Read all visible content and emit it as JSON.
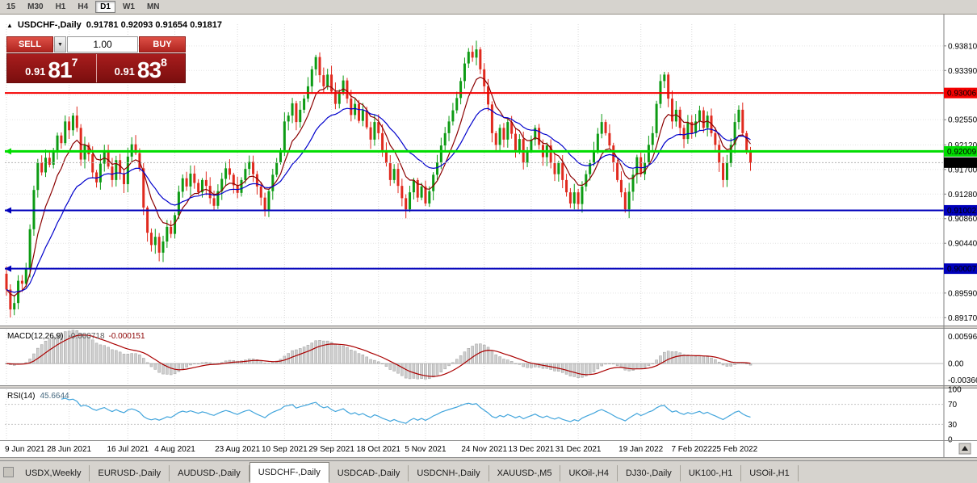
{
  "toolbar": {
    "timeframes": [
      {
        "label": "15",
        "active": false
      },
      {
        "label": "M30",
        "active": false
      },
      {
        "label": "H1",
        "active": false
      },
      {
        "label": "H4",
        "active": false
      },
      {
        "label": "D1",
        "active": true
      },
      {
        "label": "W1",
        "active": false
      },
      {
        "label": "MN",
        "active": false
      }
    ]
  },
  "chart_header": {
    "symbol": "USDCHF-,Daily",
    "ohlc": "0.91781 0.92093 0.91654 0.91817"
  },
  "trade_panel": {
    "sell_label": "SELL",
    "buy_label": "BUY",
    "volume": "1.00",
    "sell_price_prefix": "0.91",
    "sell_price_big": "81",
    "sell_price_sup": "7",
    "buy_price_prefix": "0.91",
    "buy_price_big": "83",
    "buy_price_sup": "8"
  },
  "chart_data": {
    "type": "candlestick",
    "symbol": "USDCHF",
    "timeframe": "Daily",
    "first_open": 0.8992,
    "closes": [
      0.8965,
      0.8931,
      0.8942,
      0.898,
      0.8975,
      0.9,
      0.9068,
      0.9135,
      0.9182,
      0.9165,
      0.919,
      0.9178,
      0.9201,
      0.9228,
      0.9215,
      0.9252,
      0.9237,
      0.9262,
      0.9241,
      0.9187,
      0.9212,
      0.9196,
      0.9165,
      0.9148,
      0.918,
      0.9203,
      0.9175,
      0.9152,
      0.9186,
      0.9163,
      0.9145,
      0.9192,
      0.9213,
      0.9198,
      0.9172,
      0.9105,
      0.9062,
      0.9041,
      0.9055,
      0.9028,
      0.9047,
      0.9072,
      0.906,
      0.9092,
      0.9132,
      0.9155,
      0.9141,
      0.9163,
      0.9147,
      0.9131,
      0.9152,
      0.9142,
      0.9121,
      0.9108,
      0.9133,
      0.9154,
      0.9172,
      0.9161,
      0.9143,
      0.913,
      0.9152,
      0.9171,
      0.9183,
      0.9162,
      0.9141,
      0.9122,
      0.9101,
      0.9133,
      0.9161,
      0.9182,
      0.9203,
      0.9252,
      0.9262,
      0.9283,
      0.9251,
      0.9272,
      0.9291,
      0.9312,
      0.9341,
      0.9362,
      0.9331,
      0.9312,
      0.9332,
      0.9303,
      0.9282,
      0.9302,
      0.9322,
      0.9291,
      0.9263,
      0.9282,
      0.9253,
      0.9271,
      0.9242,
      0.9221,
      0.9251,
      0.9232,
      0.9203,
      0.9181,
      0.9152,
      0.9171,
      0.9142,
      0.9121,
      0.9102,
      0.9131,
      0.9152,
      0.9122,
      0.9141,
      0.9112,
      0.9133,
      0.9161,
      0.9182,
      0.9211,
      0.9232,
      0.9252,
      0.9271,
      0.9292,
      0.9321,
      0.9351,
      0.9371,
      0.9361,
      0.9375,
      0.9341,
      0.9312,
      0.9281,
      0.9232,
      0.9212,
      0.9241,
      0.9221,
      0.9251,
      0.9231,
      0.9202,
      0.9222,
      0.9182,
      0.9202,
      0.9221,
      0.9241,
      0.9212,
      0.9191,
      0.9211,
      0.9181,
      0.9162,
      0.9181,
      0.9152,
      0.9131,
      0.9112,
      0.9131,
      0.9111,
      0.9141,
      0.9162,
      0.9181,
      0.9202,
      0.9231,
      0.9251,
      0.9232,
      0.9211,
      0.9182,
      0.9152,
      0.9131,
      0.9102,
      0.9132,
      0.9161,
      0.9191,
      0.9162,
      0.9182,
      0.9212,
      0.9232,
      0.9282,
      0.9321,
      0.9332,
      0.9291,
      0.9252,
      0.9272,
      0.9241,
      0.9222,
      0.9251,
      0.9232,
      0.9252,
      0.9271,
      0.9241,
      0.9262,
      0.9232,
      0.9212,
      0.9181,
      0.9152,
      0.9181,
      0.9212,
      0.9251,
      0.9272,
      0.9232,
      0.9201,
      0.91817
    ],
    "candle_colors": {
      "up": "#0d9b14",
      "down": "#e02a1e"
    },
    "price_axis": {
      "min": 0.8905,
      "max": 0.9418,
      "ticks": [
        {
          "label": "0.93810",
          "value": 0.9381
        },
        {
          "label": "0.93390",
          "value": 0.9339
        },
        {
          "label": "0.92970",
          "value": 0.9297
        },
        {
          "label": "0.92550",
          "value": 0.9255
        },
        {
          "label": "0.92120",
          "value": 0.9212
        },
        {
          "label": "0.91700",
          "value": 0.917
        },
        {
          "label": "0.91280",
          "value": 0.9128
        },
        {
          "label": "0.90860",
          "value": 0.9086
        },
        {
          "label": "0.90440",
          "value": 0.9044
        },
        {
          "label": "0.90020",
          "value": 0.9002
        },
        {
          "label": "0.89590",
          "value": 0.8959
        },
        {
          "label": "0.89170",
          "value": 0.8917
        }
      ]
    },
    "x_axis": {
      "labels": [
        {
          "text": "9 Jun 2021",
          "index": 0
        },
        {
          "text": "28 Jun 2021",
          "index": 16
        },
        {
          "text": "16 Jul 2021",
          "index": 31
        },
        {
          "text": "4 Aug 2021",
          "index": 43
        },
        {
          "text": "23 Aug 2021",
          "index": 59
        },
        {
          "text": "10 Sep 2021",
          "index": 71
        },
        {
          "text": "29 Sep 2021",
          "index": 83
        },
        {
          "text": "18 Oct 2021",
          "index": 95
        },
        {
          "text": "5 Nov 2021",
          "index": 107
        },
        {
          "text": "24 Nov 2021",
          "index": 122
        },
        {
          "text": "13 Dec 2021",
          "index": 134
        },
        {
          "text": "31 Dec 2021",
          "index": 146
        },
        {
          "text": "19 Jan 2022",
          "index": 162
        },
        {
          "text": "7 Feb 2022",
          "index": 175
        },
        {
          "text": "25 Feb 2022",
          "index": 186
        }
      ]
    },
    "hlines": [
      {
        "value": 0.93006,
        "label": "0.93006",
        "color": "#f40000",
        "width": 2,
        "marker": false
      },
      {
        "value": 0.92009,
        "label": "0.92009",
        "color": "#00dd00",
        "width": 3,
        "marker": true
      },
      {
        "value": 0.91002,
        "label": "0.91002",
        "color": "#0000bb",
        "width": 2,
        "marker": true
      },
      {
        "value": 0.90007,
        "label": "0.90007",
        "color": "#0000bb",
        "width": 2,
        "marker": true
      }
    ],
    "bid": {
      "value": 0.91817,
      "label": "0.91817"
    },
    "ma": [
      {
        "period": 8,
        "color": "#8b0000"
      },
      {
        "period": 21,
        "color": "#0000cc"
      }
    ],
    "macd": {
      "name": "MACD(12,26,9)",
      "value_main": "-0.000718",
      "value_signal": "-0.000151",
      "fast": 12,
      "slow": 26,
      "signal": 9,
      "range": {
        "min": -0.0046,
        "max": 0.0075
      },
      "histogram_color": "#cfcfcf",
      "signal_color": "#aa0000",
      "axis_ticks": [
        {
          "label": "0.005963",
          "value": 0.005963
        },
        {
          "label": "0.00",
          "value": 0
        },
        {
          "label": "-0.003664",
          "value": -0.003664
        }
      ]
    },
    "rsi": {
      "name": "RSI(14)",
      "value": "45.6644",
      "period": 14,
      "color": "#42a5dc",
      "levels": [
        70,
        30
      ],
      "axis_ticks": [
        {
          "label": "100",
          "value": 100
        },
        {
          "label": "70",
          "value": 70
        },
        {
          "label": "30",
          "value": 30
        },
        {
          "label": "0",
          "value": 0
        }
      ]
    }
  },
  "tabs": [
    {
      "label": "USDX,Weekly",
      "active": false
    },
    {
      "label": "EURUSD-,Daily",
      "active": false
    },
    {
      "label": "AUDUSD-,Daily",
      "active": false
    },
    {
      "label": "USDCHF-,Daily",
      "active": true
    },
    {
      "label": "USDCAD-,Daily",
      "active": false
    },
    {
      "label": "USDCNH-,Daily",
      "active": false
    },
    {
      "label": "XAUUSD-,M5",
      "active": false
    },
    {
      "label": "UKOil-,H4",
      "active": false
    },
    {
      "label": "DJ30-,Daily",
      "active": false
    },
    {
      "label": "UK100-,H1",
      "active": false
    },
    {
      "label": "USOil-,H1",
      "active": false
    }
  ]
}
